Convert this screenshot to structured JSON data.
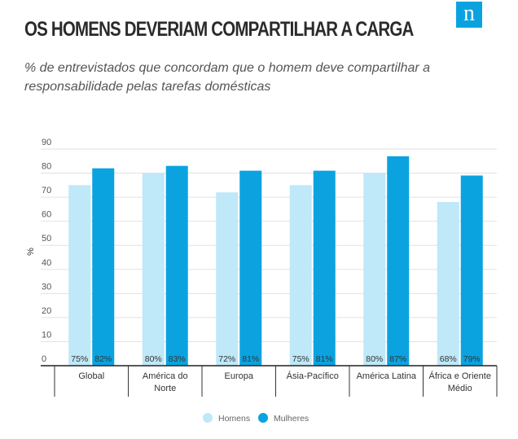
{
  "brand": {
    "logo_letter": "n",
    "logo_color": "#0aa3e0"
  },
  "chart_data": {
    "type": "bar",
    "title": "OS HOMENS DEVERIAM COMPARTILHAR A CARGA",
    "subtitle": "% de entrevistados que concordam que o homem deve compartilhar a responsabilidade pelas tarefas domésticas",
    "ylabel": "%",
    "xlabel": "",
    "ylim": [
      0,
      90
    ],
    "yticks": [
      0,
      10,
      20,
      30,
      40,
      50,
      60,
      70,
      80,
      90
    ],
    "grid": true,
    "legend_position": "bottom-center",
    "categories": [
      [
        "Global"
      ],
      [
        "América do",
        "Norte"
      ],
      [
        "Europa"
      ],
      [
        "Ásia-Pacífico"
      ],
      [
        "América Latina"
      ],
      [
        "África e Oriente",
        "Médio"
      ]
    ],
    "series": [
      {
        "name": "Homens",
        "color": "#bfe8f8",
        "values": [
          75,
          80,
          72,
          75,
          80,
          68
        ],
        "labels": [
          "75%",
          "80%",
          "72%",
          "75%",
          "80%",
          "68%"
        ]
      },
      {
        "name": "Mulheres",
        "color": "#0aa3e0",
        "values": [
          82,
          83,
          81,
          81,
          87,
          79
        ],
        "labels": [
          "82%",
          "83%",
          "81%",
          "81%",
          "87%",
          "79%"
        ]
      }
    ]
  }
}
